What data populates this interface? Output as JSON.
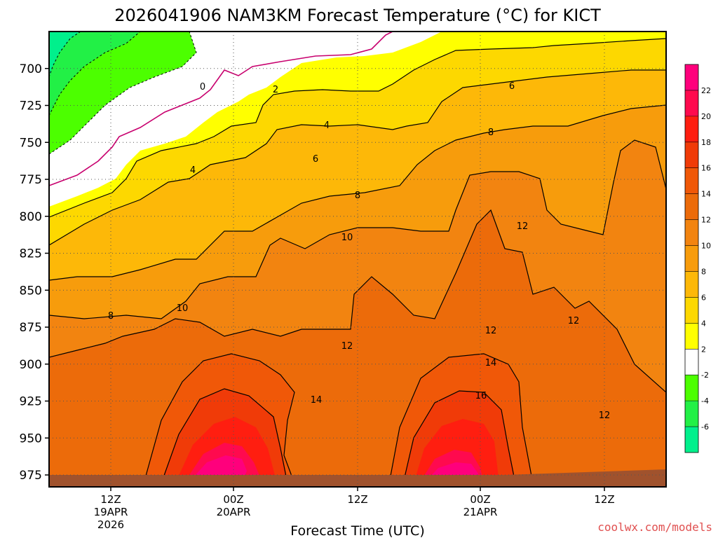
{
  "chart_data": {
    "type": "heatmap",
    "title": "2026041906 NAM3KM Forecast Temperature (°C) for KICT",
    "xlabel": "Forecast Time (UTC)",
    "ylabel": "",
    "y_scale": "pressure (inverted)",
    "y_ticks": [
      700,
      725,
      750,
      775,
      800,
      825,
      850,
      875,
      900,
      925,
      950,
      975
    ],
    "ylim": [
      975,
      675
    ],
    "x_ticks": [
      {
        "label": "12Z",
        "sub1": "19APR",
        "sub2": "2026"
      },
      {
        "label": "00Z",
        "sub1": "20APR",
        "sub2": ""
      },
      {
        "label": "12Z",
        "sub1": "",
        "sub2": ""
      },
      {
        "label": "00Z",
        "sub1": "21APR",
        "sub2": ""
      },
      {
        "label": "12Z",
        "sub1": "",
        "sub2": ""
      }
    ],
    "grid": true,
    "contour_interval": 2,
    "colorbar": {
      "labels": [
        "22",
        "20",
        "18",
        "16",
        "14",
        "12",
        "10",
        "8",
        "6",
        "4",
        "2",
        "-2",
        "-4",
        "-6"
      ],
      "bands": [
        {
          "from": 22,
          "to": 24,
          "color": "#ff007c"
        },
        {
          "from": 20,
          "to": 22,
          "color": "#ff0a4e"
        },
        {
          "from": 18,
          "to": 20,
          "color": "#ff1e10"
        },
        {
          "from": 16,
          "to": 18,
          "color": "#f03b08"
        },
        {
          "from": 14,
          "to": 16,
          "color": "#f05808"
        },
        {
          "from": 12,
          "to": 14,
          "color": "#ec6b0a"
        },
        {
          "from": 10,
          "to": 12,
          "color": "#f28410"
        },
        {
          "from": 8,
          "to": 10,
          "color": "#f79c0c"
        },
        {
          "from": 6,
          "to": 8,
          "color": "#fdb808"
        },
        {
          "from": 4,
          "to": 6,
          "color": "#fdd800"
        },
        {
          "from": 2,
          "to": 4,
          "color": "#ffff00"
        },
        {
          "from": -2,
          "to": 2,
          "color": "#ffffff"
        },
        {
          "from": -4,
          "to": -2,
          "color": "#4cff00"
        },
        {
          "from": -6,
          "to": -4,
          "color": "#22f046"
        },
        {
          "from": -8,
          "to": -6,
          "color": "#00f08c"
        }
      ]
    },
    "contour_labels": [
      "0",
      "2",
      "4",
      "6",
      "8",
      "10",
      "12",
      "14",
      "16"
    ],
    "ground_color": "#a0522d"
  },
  "credit": "coolwx.com/models"
}
